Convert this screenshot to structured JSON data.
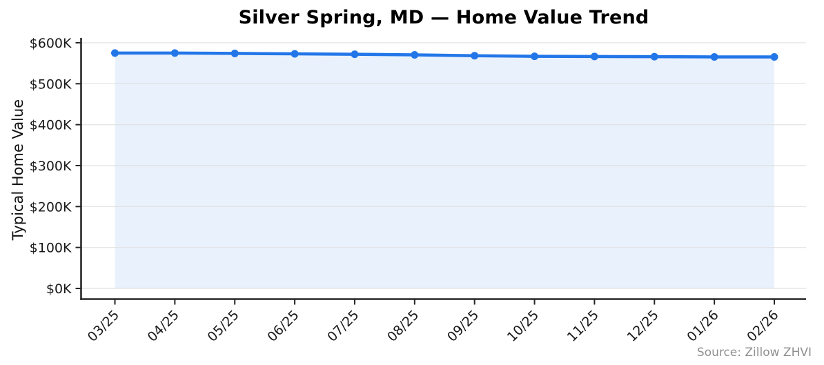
{
  "chart_data": {
    "type": "line",
    "title": "Silver Spring, MD — Home Value Trend",
    "ylabel": "Typical Home Value",
    "xlabel": "",
    "categories": [
      "03/25",
      "04/25",
      "05/25",
      "06/25",
      "07/25",
      "08/25",
      "09/25",
      "10/25",
      "11/25",
      "12/25",
      "01/26",
      "02/26"
    ],
    "series": [
      {
        "name": "Typical Home Value",
        "values": [
          575000,
          575000,
          574000,
          573000,
          572000,
          570500,
          568500,
          567000,
          566500,
          566000,
          565500,
          565500
        ]
      }
    ],
    "ylim": [
      0,
      600000
    ],
    "ytick_values": [
      0,
      100000,
      200000,
      300000,
      400000,
      500000,
      600000
    ],
    "ytick_labels": [
      "$0K",
      "$100K",
      "$200K",
      "$300K",
      "$400K",
      "$500K",
      "$600K"
    ],
    "grid": "horizontal",
    "legend_position": "none",
    "marker": "circle",
    "area_fill": true
  },
  "annotations": {
    "source": "Source: Zillow ZHVI"
  },
  "colors": {
    "line": "#2276e8",
    "marker": "#2276e8",
    "area_fill": "#e9f1fc",
    "grid": "#dedede",
    "axis": "#262626",
    "tick_text": "#191919",
    "title_text": "#000000",
    "source_text": "#8f8f8f",
    "background": "#ffffff"
  }
}
